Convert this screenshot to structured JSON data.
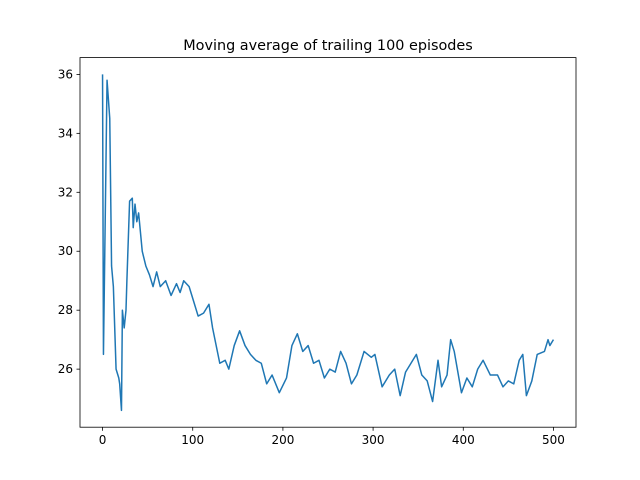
{
  "chart_data": {
    "type": "line",
    "title": "Moving average of trailing 100 episodes",
    "x": [
      0,
      1,
      5,
      8,
      10,
      12,
      15,
      18,
      19,
      21,
      22,
      24,
      26,
      27,
      30,
      33,
      34,
      36,
      38,
      40,
      44,
      48,
      52,
      56,
      60,
      64,
      70,
      76,
      82,
      86,
      90,
      96,
      100,
      106,
      112,
      118,
      122,
      130,
      136,
      140,
      146,
      152,
      158,
      164,
      170,
      176,
      182,
      188,
      196,
      204,
      210,
      216,
      222,
      228,
      234,
      240,
      246,
      252,
      258,
      264,
      270,
      276,
      282,
      290,
      298,
      302,
      310,
      318,
      324,
      330,
      336,
      342,
      348,
      354,
      360,
      366,
      372,
      376,
      382,
      386,
      390,
      398,
      404,
      410,
      416,
      422,
      430,
      438,
      444,
      450,
      456,
      462,
      466,
      470,
      476,
      482,
      490,
      494,
      496,
      500
    ],
    "series": [
      {
        "name": "moving-average",
        "color": "#1f77b4",
        "values": [
          36.0,
          26.5,
          35.8,
          34.5,
          29.5,
          28.8,
          26.0,
          25.7,
          25.5,
          24.6,
          28.0,
          27.4,
          28.0,
          29.0,
          31.7,
          31.8,
          30.8,
          31.6,
          31.0,
          31.3,
          30.0,
          29.5,
          29.2,
          28.8,
          29.3,
          28.8,
          29.0,
          28.5,
          28.9,
          28.6,
          29.0,
          28.8,
          28.4,
          27.8,
          27.9,
          28.2,
          27.4,
          26.2,
          26.3,
          26.0,
          26.8,
          27.3,
          26.8,
          26.5,
          26.3,
          26.2,
          25.5,
          25.8,
          25.2,
          25.7,
          26.8,
          27.2,
          26.6,
          26.8,
          26.2,
          26.3,
          25.7,
          26.0,
          25.9,
          26.6,
          26.2,
          25.5,
          25.8,
          26.6,
          26.4,
          26.5,
          25.4,
          25.8,
          26.0,
          25.1,
          25.9,
          26.2,
          26.5,
          25.8,
          25.6,
          24.9,
          26.3,
          25.4,
          25.8,
          27.0,
          26.6,
          25.2,
          25.7,
          25.4,
          26.0,
          26.3,
          25.8,
          25.8,
          25.4,
          25.6,
          25.5,
          26.3,
          26.5,
          25.1,
          25.6,
          26.5,
          26.6,
          27.0,
          26.8,
          27.0
        ]
      }
    ],
    "xlim": [
      -25,
      525
    ],
    "xticks": [
      0,
      100,
      200,
      300,
      400,
      500
    ],
    "ylim": [
      24.03,
      36.57
    ],
    "yticks": [
      26,
      28,
      30,
      32,
      34,
      36
    ]
  }
}
